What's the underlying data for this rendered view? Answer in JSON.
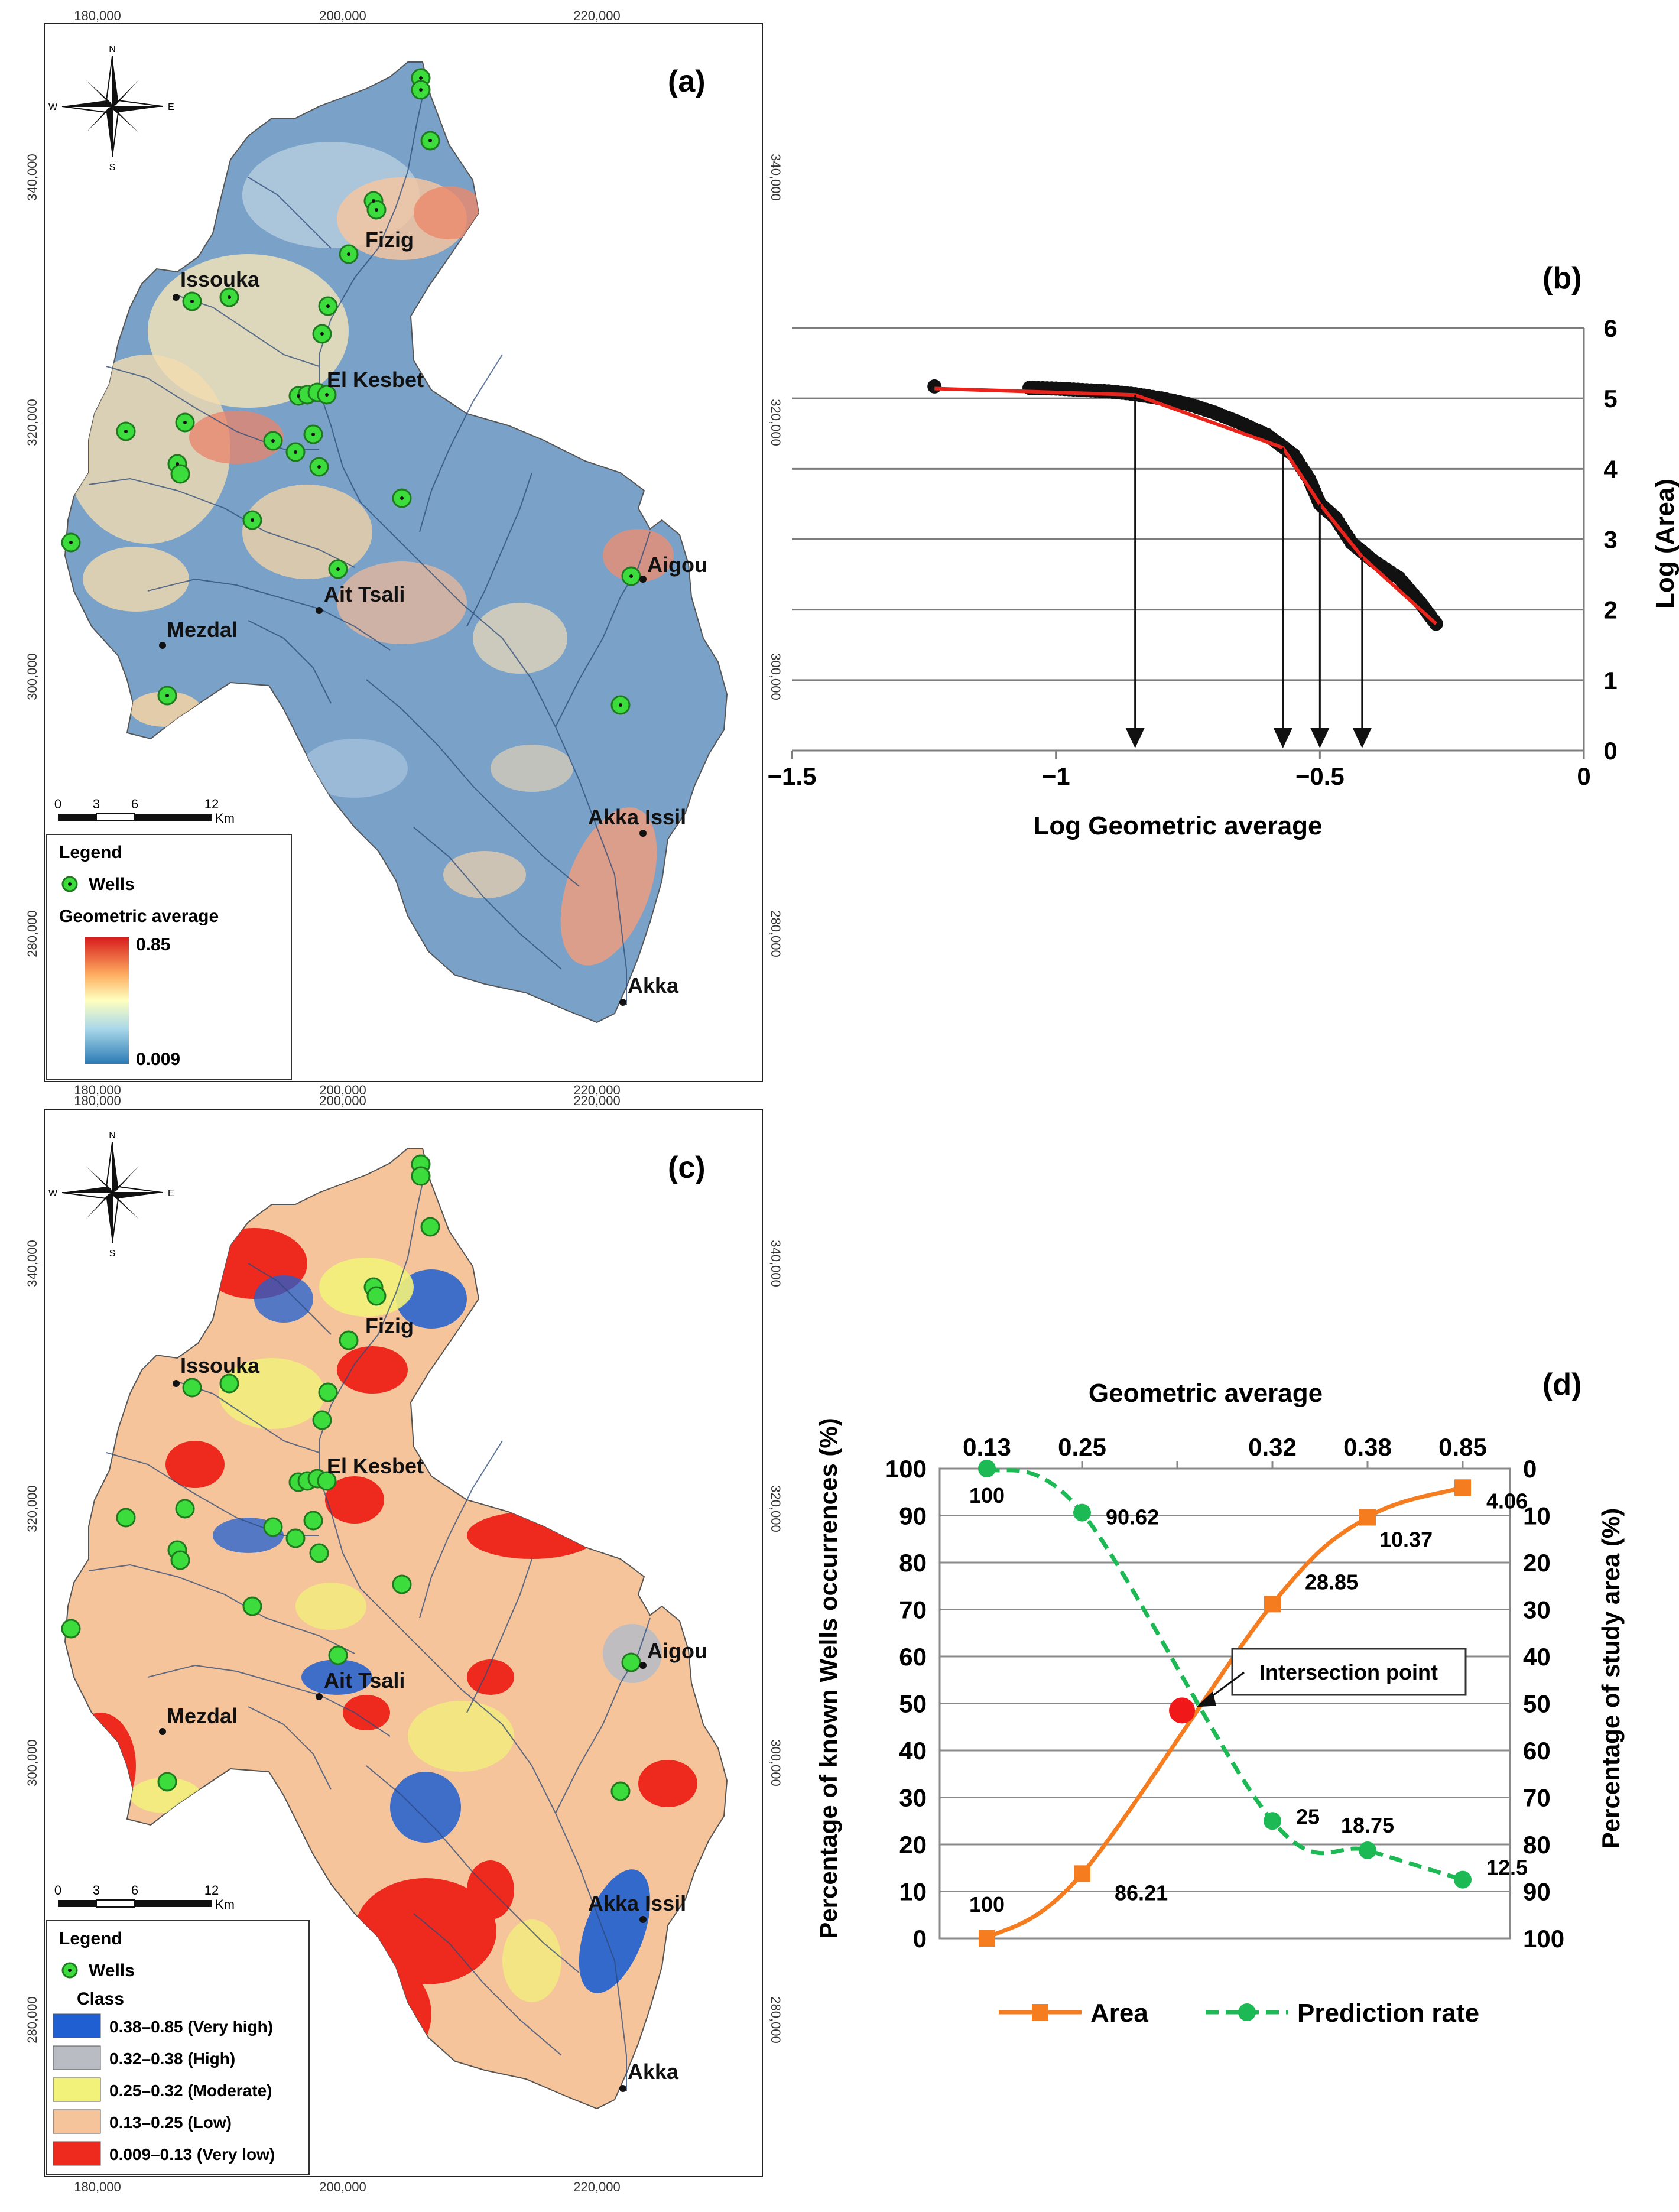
{
  "panel_a": {
    "label": "(a)",
    "x_ticks": [
      "180,000",
      "200,000",
      "220,000"
    ],
    "y_ticks": [
      "340,000",
      "320,000",
      "300,000",
      "280,000"
    ],
    "compass": {
      "n": "N",
      "s": "S",
      "e": "E",
      "w": "W"
    },
    "scale": {
      "ticks": [
        "0",
        "3",
        "6",
        "12"
      ],
      "unit": "Km"
    },
    "places": [
      {
        "name": "Fizig"
      },
      {
        "name": "Issouka"
      },
      {
        "name": "El Kesbet"
      },
      {
        "name": "Aigou"
      },
      {
        "name": "Ait Tsali"
      },
      {
        "name": "Mezdal"
      },
      {
        "name": "Akka Issil"
      },
      {
        "name": "Akka"
      }
    ],
    "legend": {
      "title": "Legend",
      "wells_label": "Wells",
      "ramp_title": "Geometric average",
      "ramp_max": "0.85",
      "ramp_min": "0.009",
      "colors": [
        "#d7191c",
        "#fdae61",
        "#ffffbf",
        "#abd9e9",
        "#2c7bb6"
      ]
    }
  },
  "panel_c": {
    "label": "(c)",
    "x_ticks": [
      "180,000",
      "200,000",
      "220,000"
    ],
    "y_ticks": [
      "340,000",
      "320,000",
      "300,000",
      "280,000"
    ],
    "compass": {
      "n": "N",
      "s": "S",
      "e": "E",
      "w": "W"
    },
    "scale": {
      "ticks": [
        "0",
        "3",
        "6",
        "12"
      ],
      "unit": "Km"
    },
    "places": [
      {
        "name": "Fizig"
      },
      {
        "name": "Issouka"
      },
      {
        "name": "El Kesbet"
      },
      {
        "name": "Aigou"
      },
      {
        "name": "Ait Tsali"
      },
      {
        "name": "Mezdal"
      },
      {
        "name": "Akka Issil"
      },
      {
        "name": "Akka"
      }
    ],
    "legend": {
      "title": "Legend",
      "wells_label": "Wells",
      "class_title": "Class",
      "classes": [
        {
          "label": "0.38–0.85 (Very high)",
          "color": "#1f5fd1"
        },
        {
          "label": "0.32–0.38 (High)",
          "color": "#b9bcc3"
        },
        {
          "label": "0.25–0.32 (Moderate)",
          "color": "#f2f27a"
        },
        {
          "label": "0.13–0.25 (Low)",
          "color": "#f5c49b"
        },
        {
          "label": "0.009–0.13 (Very low)",
          "color": "#ee2a1f"
        }
      ]
    }
  },
  "chart_data": [
    {
      "id": "b",
      "label": "(b)",
      "type": "scatter",
      "xlabel": "Log Geometric average",
      "ylabel": "Log (Area)",
      "xlim": [
        -1.5,
        0
      ],
      "ylim": [
        0,
        6
      ],
      "x_ticks": [
        "−1.5",
        "−1",
        "−0.5",
        "0"
      ],
      "y_ticks": [
        "0",
        "1",
        "2",
        "3",
        "4",
        "5",
        "6"
      ],
      "points": [
        [
          -1.23,
          5.17
        ],
        [
          -1.05,
          5.15
        ],
        [
          -1.0,
          5.14
        ],
        [
          -0.95,
          5.12
        ],
        [
          -0.9,
          5.1
        ],
        [
          -0.85,
          5.06
        ],
        [
          -0.8,
          5.0
        ],
        [
          -0.75,
          4.92
        ],
        [
          -0.7,
          4.8
        ],
        [
          -0.65,
          4.65
        ],
        [
          -0.6,
          4.48
        ],
        [
          -0.55,
          4.2
        ],
        [
          -0.52,
          3.85
        ],
        [
          -0.5,
          3.5
        ],
        [
          -0.47,
          3.3
        ],
        [
          -0.44,
          2.95
        ],
        [
          -0.4,
          2.7
        ],
        [
          -0.35,
          2.45
        ],
        [
          -0.31,
          2.1
        ],
        [
          -0.28,
          1.8
        ]
      ],
      "fit_line": [
        [
          -1.23,
          5.14
        ],
        [
          -0.85,
          5.05
        ],
        [
          -0.57,
          4.3
        ],
        [
          -0.5,
          3.5
        ],
        [
          -0.42,
          2.75
        ],
        [
          -0.28,
          1.8
        ]
      ],
      "thresholds": [
        -0.85,
        -0.57,
        -0.5,
        -0.42
      ]
    },
    {
      "id": "d",
      "label": "(d)",
      "type": "line",
      "title": "Geometric average",
      "categories": [
        "0.13",
        "0.25",
        "",
        "0.32",
        "0.38",
        "0.85"
      ],
      "ylabel_left": "Percentage of known Wells occurrences (%)",
      "ylabel_right": "Percentage of study area (%)",
      "yticks_left": [
        "0",
        "10",
        "20",
        "30",
        "40",
        "50",
        "60",
        "70",
        "80",
        "90",
        "100"
      ],
      "yticks_right": [
        "100",
        "90",
        "80",
        "70",
        "60",
        "50",
        "40",
        "30",
        "20",
        "10",
        "0"
      ],
      "series": [
        {
          "name": "Area",
          "color": "#f57c1f",
          "points": [
            [
              0,
              0
            ],
            [
              1,
              13.79
            ],
            [
              3,
              71.15
            ],
            [
              4,
              89.63
            ],
            [
              5,
              95.94
            ]
          ],
          "labels": [
            "100",
            "86.21",
            "28.85",
            "10.37",
            "4.06"
          ]
        },
        {
          "name": "Prediction rate",
          "color": "#1db954",
          "points": [
            [
              0,
              100
            ],
            [
              1,
              90.62
            ],
            [
              3,
              25
            ],
            [
              4,
              18.75
            ],
            [
              5,
              12.5
            ]
          ],
          "labels": [
            "100",
            "90.62",
            "25",
            "18.75",
            "12.5"
          ]
        }
      ],
      "annotation": "Intersection point",
      "intersection": [
        2.05,
        48.5
      ]
    }
  ]
}
